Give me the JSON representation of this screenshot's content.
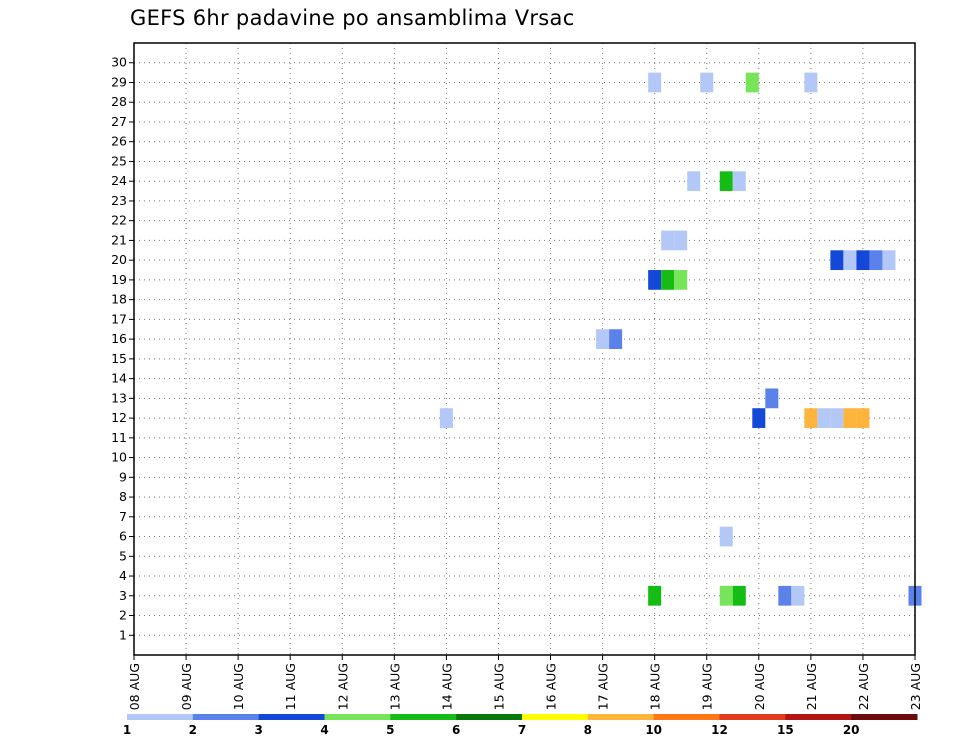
{
  "title": "GEFS 6hr padavine po ansamblima Vrsac",
  "chart_data": {
    "type": "heatmap",
    "title": "GEFS 6hr padavine po ansamblima Vrsac",
    "x_tick_labels": [
      "08 AUG",
      "09 AUG",
      "10 AUG",
      "11 AUG",
      "12 AUG",
      "13 AUG",
      "14 AUG",
      "15 AUG",
      "16 AUG",
      "17 AUG",
      "18 AUG",
      "19 AUG",
      "20 AUG",
      "21 AUG",
      "22 AUG",
      "23 AUG"
    ],
    "xlim_days": [
      0,
      15
    ],
    "ylim": [
      0,
      31
    ],
    "y_ticks": [
      1,
      2,
      3,
      4,
      5,
      6,
      7,
      8,
      9,
      10,
      11,
      12,
      13,
      14,
      15,
      16,
      17,
      18,
      19,
      20,
      21,
      22,
      23,
      24,
      25,
      26,
      27,
      28,
      29,
      30
    ],
    "grid": true,
    "colorbar": {
      "labels": [
        "1",
        "2",
        "3",
        "4",
        "5",
        "6",
        "7",
        "8",
        "10",
        "12",
        "15",
        "20"
      ],
      "colors": [
        "#b4c8f8",
        "#5a82ea",
        "#1448d8",
        "#78e45a",
        "#14bc14",
        "#087808",
        "#ffff00",
        "#ffb43c",
        "#ff7814",
        "#e13c1e",
        "#b41414",
        "#6e0a0a"
      ]
    },
    "cells": [
      {
        "day": 9.875,
        "member": 29,
        "color": "#b4c8f8"
      },
      {
        "day": 10.875,
        "member": 29,
        "color": "#b4c8f8"
      },
      {
        "day": 11.75,
        "member": 29,
        "color": "#78e45a"
      },
      {
        "day": 12.875,
        "member": 29,
        "color": "#b4c8f8"
      },
      {
        "day": 10.625,
        "member": 24,
        "color": "#b4c8f8"
      },
      {
        "day": 11.25,
        "member": 24,
        "color": "#14bc14"
      },
      {
        "day": 11.5,
        "member": 24,
        "color": "#b4c8f8"
      },
      {
        "day": 10.125,
        "member": 21,
        "color": "#b4c8f8"
      },
      {
        "day": 10.375,
        "member": 21,
        "color": "#b4c8f8"
      },
      {
        "day": 13.375,
        "member": 20,
        "color": "#1448d8"
      },
      {
        "day": 13.625,
        "member": 20,
        "color": "#b4c8f8"
      },
      {
        "day": 13.875,
        "member": 20,
        "color": "#1448d8"
      },
      {
        "day": 14.125,
        "member": 20,
        "color": "#5a82ea"
      },
      {
        "day": 14.375,
        "member": 20,
        "color": "#b4c8f8"
      },
      {
        "day": 9.875,
        "member": 19,
        "color": "#1448d8"
      },
      {
        "day": 10.125,
        "member": 19,
        "color": "#14bc14"
      },
      {
        "day": 10.375,
        "member": 19,
        "color": "#78e45a"
      },
      {
        "day": 8.875,
        "member": 16,
        "color": "#b4c8f8"
      },
      {
        "day": 9.125,
        "member": 16,
        "color": "#5a82ea"
      },
      {
        "day": 12.125,
        "member": 13,
        "color": "#5a82ea"
      },
      {
        "day": 5.875,
        "member": 12,
        "color": "#b4c8f8"
      },
      {
        "day": 11.875,
        "member": 12,
        "color": "#1448d8"
      },
      {
        "day": 12.875,
        "member": 12,
        "color": "#ffb43c"
      },
      {
        "day": 13.125,
        "member": 12,
        "color": "#b4c8f8"
      },
      {
        "day": 13.375,
        "member": 12,
        "color": "#b4c8f8"
      },
      {
        "day": 13.625,
        "member": 12,
        "color": "#ffb43c"
      },
      {
        "day": 13.875,
        "member": 12,
        "color": "#ffb43c"
      },
      {
        "day": 11.25,
        "member": 6,
        "color": "#b4c8f8"
      },
      {
        "day": 9.875,
        "member": 3,
        "color": "#14bc14"
      },
      {
        "day": 11.25,
        "member": 3,
        "color": "#78e45a"
      },
      {
        "day": 11.5,
        "member": 3,
        "color": "#14bc14"
      },
      {
        "day": 12.375,
        "member": 3,
        "color": "#5a82ea"
      },
      {
        "day": 12.625,
        "member": 3,
        "color": "#b4c8f8"
      },
      {
        "day": 14.875,
        "member": 3,
        "color": "#5a82ea"
      }
    ]
  }
}
